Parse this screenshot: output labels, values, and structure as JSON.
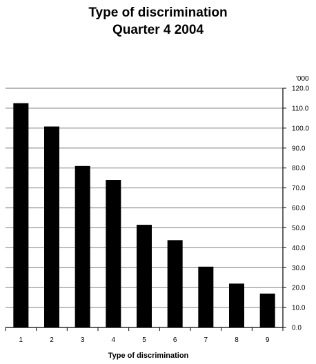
{
  "chart_data": {
    "type": "bar",
    "title": "Type of discrimination",
    "subtitle": "Quarter 4 2004",
    "xlabel": "Type of discrimination",
    "ylabel": "'000",
    "categories": [
      "1",
      "2",
      "3",
      "4",
      "5",
      "6",
      "7",
      "8",
      "9"
    ],
    "values": [
      112.5,
      100.8,
      81.0,
      74.0,
      51.5,
      43.8,
      30.5,
      22.0,
      17.0
    ],
    "ylim": [
      0,
      120
    ],
    "ytick_step": 10,
    "ytick_labels": [
      "0.0",
      "10.0",
      "20.0",
      "30.0",
      "40.0",
      "50.0",
      "60.0",
      "70.0",
      "80.0",
      "90.0",
      "100.0",
      "110.0",
      "120.0"
    ],
    "y_axis_side": "right",
    "grid": true,
    "colors": {
      "bar": "#000000",
      "grid": "#8c8c8c",
      "axis": "#000000"
    }
  }
}
